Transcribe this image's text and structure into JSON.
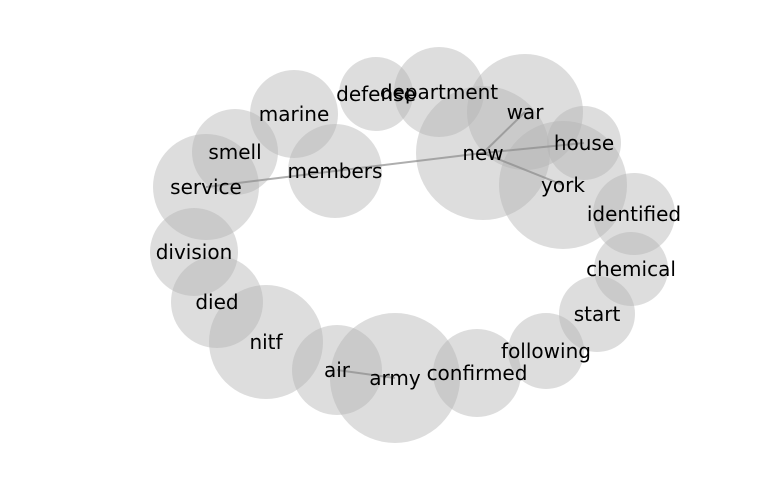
{
  "chart_data": {
    "type": "network",
    "nodes": [
      {
        "id": "defense",
        "label": "defense"
      },
      {
        "id": "department",
        "label": "department"
      },
      {
        "id": "war",
        "label": "war"
      },
      {
        "id": "marine",
        "label": "marine"
      },
      {
        "id": "house",
        "label": "house"
      },
      {
        "id": "smell",
        "label": "smell"
      },
      {
        "id": "new",
        "label": "new"
      },
      {
        "id": "members",
        "label": "members"
      },
      {
        "id": "york",
        "label": "york"
      },
      {
        "id": "service",
        "label": "service"
      },
      {
        "id": "identified",
        "label": "identified"
      },
      {
        "id": "division",
        "label": "division"
      },
      {
        "id": "chemical",
        "label": "chemical"
      },
      {
        "id": "died",
        "label": "died"
      },
      {
        "id": "start",
        "label": "start"
      },
      {
        "id": "nitf",
        "label": "nitf"
      },
      {
        "id": "following",
        "label": "following"
      },
      {
        "id": "air",
        "label": "air"
      },
      {
        "id": "confirmed",
        "label": "confirmed"
      },
      {
        "id": "army",
        "label": "army"
      }
    ],
    "edges": [
      {
        "source": "new",
        "target": "war"
      },
      {
        "source": "new",
        "target": "house"
      },
      {
        "source": "new",
        "target": "york"
      },
      {
        "source": "new",
        "target": "members"
      },
      {
        "source": "members",
        "target": "service"
      },
      {
        "source": "air",
        "target": "army"
      }
    ]
  }
}
